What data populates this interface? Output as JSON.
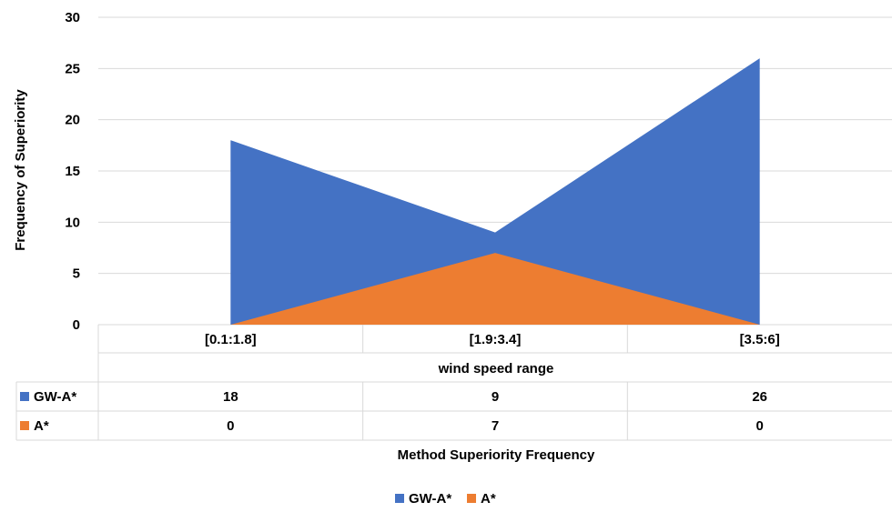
{
  "chart_data": {
    "type": "area",
    "categories": [
      "[0.1:1.8]",
      "[1.9:3.4]",
      "[3.5:6]"
    ],
    "series": [
      {
        "name": "GW-A*",
        "values": [
          18,
          9,
          26
        ],
        "color": "#4472C4"
      },
      {
        "name": "A*",
        "values": [
          0,
          7,
          0
        ],
        "color": "#ED7D31"
      }
    ],
    "title": "",
    "xlabel": "wind speed range",
    "ylabel": "Frequency of Superiority",
    "ylim": [
      0,
      30
    ],
    "yticks": [
      0,
      5,
      10,
      15,
      20,
      25,
      30
    ],
    "grid": true,
    "data_table_title": "Method Superiority Frequency",
    "legend_position": "bottom"
  }
}
